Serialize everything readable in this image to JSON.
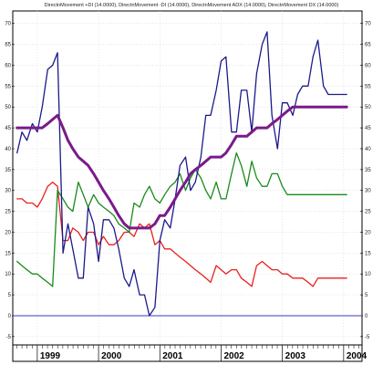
{
  "chart_data": {
    "type": "line",
    "title": "DirectnMovement +DI (14.0000), DirectnMovement -DI (14.0000), DirectnMovement ADX (14.0000), DirectnMovement DX (14.0000)",
    "xlabel": "",
    "ylabel": "",
    "x": [
      1998.67,
      1998.75,
      1998.83,
      1998.92,
      1999.0,
      1999.08,
      1999.17,
      1999.25,
      1999.33,
      1999.42,
      1999.5,
      1999.58,
      1999.67,
      1999.75,
      1999.83,
      1999.92,
      2000.0,
      2000.08,
      2000.17,
      2000.25,
      2000.33,
      2000.42,
      2000.5,
      2000.58,
      2000.67,
      2000.75,
      2000.83,
      2000.92,
      2001.0,
      2001.08,
      2001.17,
      2001.25,
      2001.33,
      2001.42,
      2001.5,
      2001.58,
      2001.67,
      2001.75,
      2001.83,
      2001.92,
      2002.0,
      2002.08,
      2002.17,
      2002.25,
      2002.33,
      2002.42,
      2002.5,
      2002.58,
      2002.67,
      2002.75,
      2002.83,
      2002.92,
      2003.0,
      2003.08,
      2003.17,
      2003.25,
      2003.33,
      2003.42,
      2003.5,
      2003.58,
      2003.67,
      2003.75,
      2003.83,
      2003.92,
      2004.0,
      2004.05
    ],
    "series": [
      {
        "color": "#e8201c",
        "values": [
          28,
          28,
          27,
          27,
          26,
          28,
          31,
          32,
          31,
          18,
          18,
          21,
          20,
          18,
          20,
          20,
          17,
          19,
          17,
          17,
          18,
          20,
          20,
          19,
          22,
          21,
          22,
          17,
          18,
          16,
          16,
          15,
          14,
          13,
          12,
          11,
          10,
          9,
          8,
          12,
          11,
          10,
          11,
          11,
          9,
          8,
          7,
          12,
          13,
          12,
          11,
          11,
          10,
          10,
          9,
          9,
          9,
          8,
          7,
          9,
          9,
          9,
          9,
          9,
          9,
          9
        ]
      },
      {
        "color": "#1a8a1a",
        "values": [
          13,
          12,
          11,
          10,
          10,
          9,
          8,
          7,
          30,
          28,
          26,
          25,
          32,
          29,
          26,
          29,
          27,
          26,
          25,
          24,
          22,
          21,
          20,
          27,
          26,
          29,
          31,
          28,
          27,
          29,
          31,
          32,
          34,
          30,
          33,
          35,
          33,
          30,
          28,
          32,
          28,
          28,
          34,
          39,
          36,
          31,
          37,
          33,
          31,
          31,
          34,
          34,
          31,
          29,
          29,
          29,
          29,
          29,
          29,
          29,
          29,
          29,
          29,
          29,
          29,
          29
        ]
      },
      {
        "color": "#1a1a8a",
        "values": [
          39,
          44,
          42,
          46,
          44,
          50,
          59,
          60,
          63,
          15,
          22,
          16,
          9,
          9,
          26,
          22,
          13,
          23,
          23,
          21,
          16,
          9,
          7,
          11,
          5,
          5,
          0,
          2,
          18,
          23,
          21,
          28,
          36,
          38,
          30,
          32,
          38,
          48,
          48,
          54,
          61,
          62,
          44,
          44,
          54,
          54,
          44,
          58,
          65,
          68,
          48,
          40,
          51,
          51,
          48,
          53,
          55,
          55,
          62,
          66,
          55,
          53,
          53,
          53,
          53,
          53
        ]
      },
      {
        "color": "#7a1a8a",
        "values": [
          45,
          45,
          45,
          45,
          45,
          45,
          46,
          47,
          48,
          45,
          42,
          40,
          38,
          37,
          36,
          34,
          32,
          30,
          28,
          26,
          24,
          22,
          21,
          21,
          21,
          21,
          21,
          22,
          24,
          24,
          26,
          28,
          30,
          32,
          34,
          35,
          36,
          37,
          38,
          38,
          38,
          39,
          41,
          43,
          43,
          43,
          44,
          45,
          45,
          45,
          46,
          47,
          48,
          49,
          50,
          50,
          50,
          50,
          50,
          50,
          50,
          50,
          50,
          50,
          50,
          50
        ]
      }
    ],
    "ylim": [
      -7,
      73
    ],
    "yticks": [
      -5,
      0,
      5,
      10,
      15,
      20,
      25,
      30,
      35,
      40,
      45,
      50,
      55,
      60,
      65,
      70
    ],
    "xticks": [
      {
        "label": "1999",
        "at": 1999.0
      },
      {
        "label": "2000",
        "at": 2000.0
      },
      {
        "label": "2001",
        "at": 2001.0
      },
      {
        "label": "2002",
        "at": 2002.0
      },
      {
        "label": "2003",
        "at": 2003.0
      },
      {
        "label": "2004",
        "at": 2004.0
      }
    ],
    "xlim": [
      1998.6,
      2004.3
    ],
    "reference_line": {
      "value": 0,
      "color": "#3a3ac8"
    },
    "grid": true
  }
}
